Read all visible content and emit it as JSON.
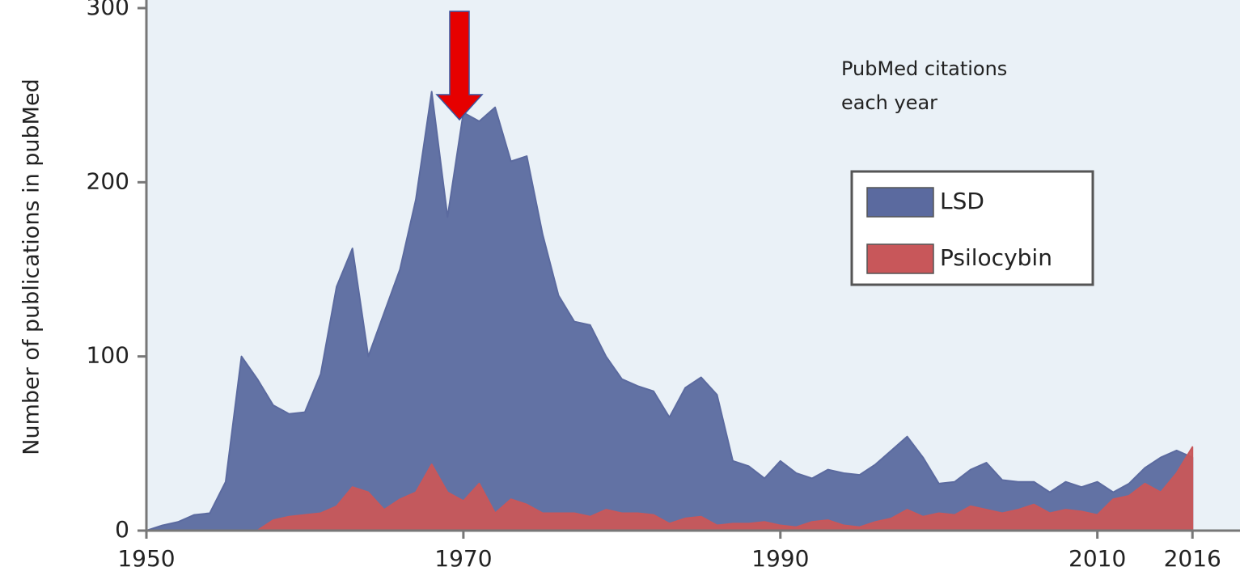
{
  "chart_data": {
    "type": "area",
    "y_label": "Number of publications in pubMed",
    "annotation": [
      "PubMed citations",
      "each year"
    ],
    "x": [
      1950,
      1951,
      1952,
      1953,
      1954,
      1955,
      1956,
      1957,
      1958,
      1959,
      1960,
      1961,
      1962,
      1963,
      1964,
      1965,
      1966,
      1967,
      1968,
      1969,
      1970,
      1971,
      1972,
      1973,
      1974,
      1975,
      1976,
      1977,
      1978,
      1979,
      1980,
      1981,
      1982,
      1983,
      1984,
      1985,
      1986,
      1987,
      1988,
      1989,
      1990,
      1991,
      1992,
      1993,
      1994,
      1995,
      1996,
      1997,
      1998,
      1999,
      2000,
      2001,
      2002,
      2003,
      2004,
      2005,
      2006,
      2007,
      2008,
      2009,
      2010,
      2011,
      2012,
      2013,
      2014,
      2015,
      2016
    ],
    "series": [
      {
        "name": "LSD",
        "color": "#5b6a9f",
        "values": [
          0,
          3,
          5,
          9,
          10,
          28,
          100,
          87,
          72,
          67,
          68,
          90,
          140,
          162,
          100,
          125,
          150,
          190,
          252,
          180,
          240,
          235,
          243,
          212,
          215,
          170,
          135,
          120,
          118,
          100,
          87,
          83,
          80,
          65,
          82,
          88,
          78,
          40,
          37,
          30,
          40,
          33,
          30,
          35,
          33,
          32,
          38,
          46,
          54,
          42,
          27,
          28,
          35,
          39,
          29,
          28,
          28,
          22,
          28,
          25,
          28,
          22,
          27,
          36,
          42,
          46,
          42
        ]
      },
      {
        "name": "Psilocybin",
        "color": "#c8575a",
        "values": [
          null,
          null,
          null,
          null,
          null,
          null,
          null,
          0,
          6,
          8,
          9,
          10,
          14,
          25,
          22,
          12,
          18,
          22,
          38,
          22,
          17,
          27,
          10,
          18,
          15,
          10,
          10,
          10,
          8,
          12,
          10,
          10,
          9,
          4,
          7,
          8,
          3,
          4,
          4,
          5,
          3,
          2,
          5,
          6,
          3,
          2,
          5,
          7,
          12,
          8,
          10,
          9,
          14,
          12,
          10,
          12,
          15,
          10,
          12,
          11,
          9,
          18,
          20,
          27,
          22,
          33,
          48
        ]
      }
    ],
    "xlim": [
      1950,
      2019
    ],
    "xticks": [
      1950,
      1970,
      1990,
      2010,
      2016
    ],
    "ylim": [
      0,
      300
    ],
    "yticks": [
      0,
      100,
      200,
      300
    ]
  }
}
